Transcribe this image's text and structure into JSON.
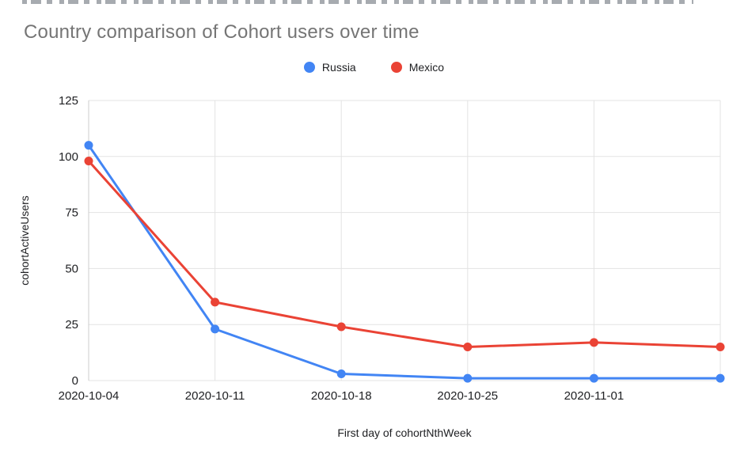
{
  "chart_data": {
    "type": "line",
    "title": "Country comparison of Cohort users over time",
    "xlabel": "First day of cohortNthWeek",
    "ylabel": "cohortActiveUsers",
    "x_tick_labels": [
      "2020-10-04",
      "2020-10-11",
      "2020-10-18",
      "2020-10-25",
      "2020-11-01",
      ""
    ],
    "y_ticks": [
      0,
      25,
      50,
      75,
      100,
      125
    ],
    "ylim": [
      0,
      125
    ],
    "grid": true,
    "legend_position": "top-center",
    "series": [
      {
        "name": "Russia",
        "color": "#4285F4",
        "values": [
          105,
          23,
          3,
          1,
          1,
          1
        ]
      },
      {
        "name": "Mexico",
        "color": "#EA4335",
        "values": [
          98,
          35,
          24,
          15,
          17,
          15
        ]
      }
    ],
    "style": {
      "gridline_color": "#e3e3e3",
      "axis_line_color": "#cccccc",
      "tick_label_color": "#202124",
      "title_color": "#757575"
    }
  }
}
